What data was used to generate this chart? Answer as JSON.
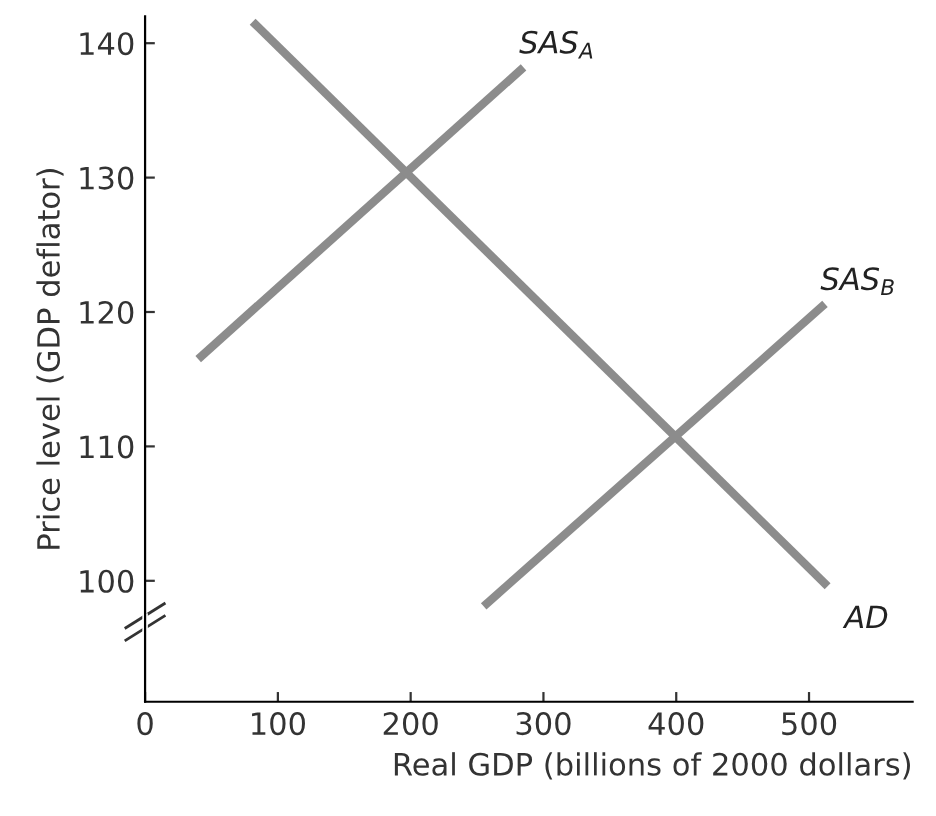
{
  "chart_data": {
    "type": "line",
    "xlabel": "Real GDP (billions of 2000 dollars)",
    "ylabel": "Price level (GDP deflator)",
    "xlim": [
      0,
      578
    ],
    "ylim": [
      91,
      142
    ],
    "xticks": [
      0,
      100,
      200,
      300,
      400,
      500
    ],
    "yticks": [
      100,
      110,
      120,
      130,
      140
    ],
    "grid": false,
    "legend": false,
    "marker": "none",
    "line_style": "solid",
    "series": [
      {
        "name": "SAS$_{A}$",
        "color": "#8c8c8c",
        "x": [
          40,
          285
        ],
        "values": [
          116.5,
          138.2
        ]
      },
      {
        "name": "AD",
        "color": "#8c8c8c",
        "x": [
          81,
          514
        ],
        "values": [
          141.6,
          99.6
        ]
      },
      {
        "name": "SAS$_{B}$",
        "color": "#8c8c8c",
        "x": [
          255,
          512
        ],
        "values": [
          98.1,
          120.6
        ]
      }
    ]
  }
}
